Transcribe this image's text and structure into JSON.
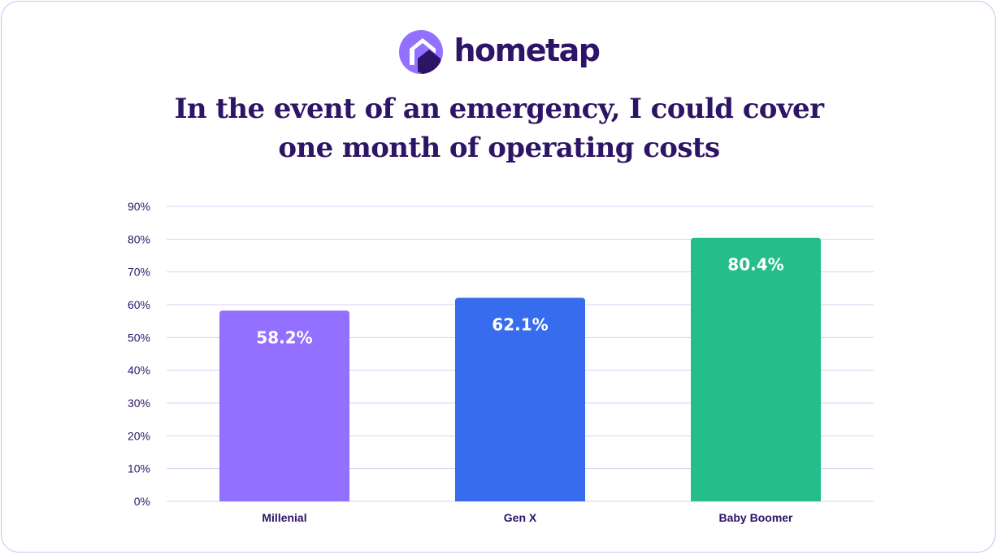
{
  "brand": {
    "name": "hometap",
    "logo_icon": "house-in-circle-icon",
    "colors": {
      "primary": "#2d1466",
      "accent": "#9370ff"
    }
  },
  "chart_data": {
    "type": "bar",
    "title": "In the event of an emergency, I could cover one month of operating costs",
    "title_lines": [
      "In the event of an emergency, I could cover",
      "one month of operating costs"
    ],
    "categories": [
      "Millenial",
      "Gen X",
      "Baby Boomer"
    ],
    "values": [
      58.2,
      62.1,
      80.4
    ],
    "value_labels": [
      "58.2%",
      "62.1%",
      "80.4%"
    ],
    "bar_colors": [
      "#9370ff",
      "#366ced",
      "#25bd89"
    ],
    "ylim": [
      0,
      90
    ],
    "yticks": [
      0,
      10,
      20,
      30,
      40,
      50,
      60,
      70,
      80,
      90
    ],
    "ytick_labels": [
      "0%",
      "10%",
      "20%",
      "30%",
      "40%",
      "50%",
      "60%",
      "70%",
      "80%",
      "90%"
    ],
    "xlabel": "",
    "ylabel": "",
    "grid": true,
    "legend": "none"
  }
}
